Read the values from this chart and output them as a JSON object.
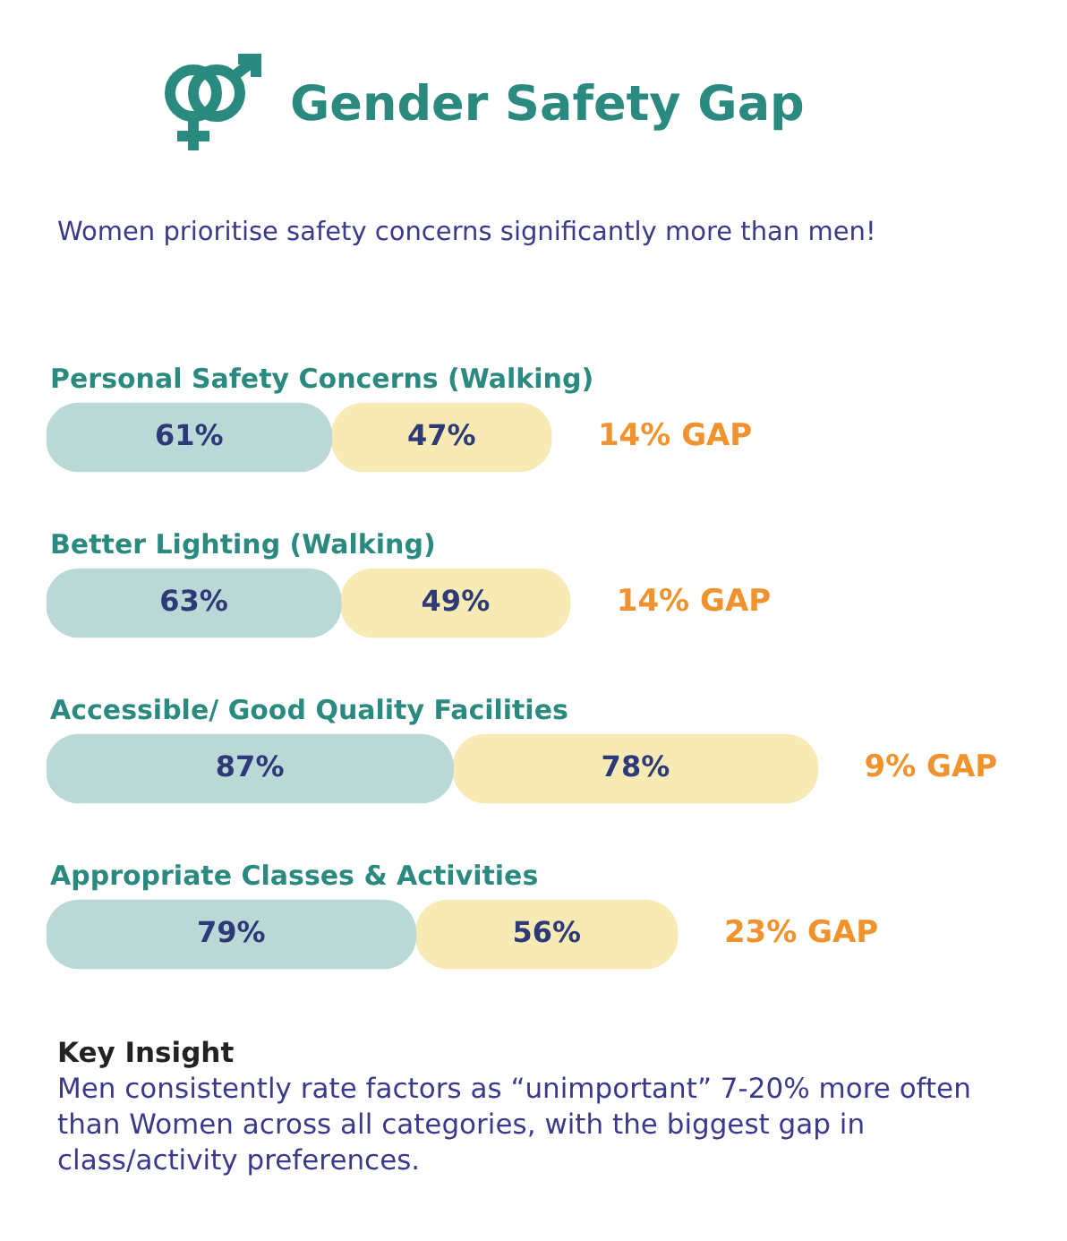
{
  "chart_data": {
    "type": "bar",
    "orientation": "horizontal",
    "stacked": true,
    "title": "Gender Safety Gap",
    "subtitle": "Women prioritise safety concerns significantly more than men!",
    "categories": [
      "Personal Safety Concerns (Walking)",
      "Better Lighting (Walking)",
      "Accessible/ Good Quality Facilities",
      "Appropriate Classes & Activities"
    ],
    "series": [
      {
        "color": "#bad8d5",
        "values": [
          61,
          63,
          87,
          79
        ],
        "value_labels": [
          "61%",
          "63%",
          "87%",
          "79%"
        ]
      },
      {
        "color": "#f7eab5",
        "values": [
          47,
          49,
          78,
          56
        ],
        "value_labels": [
          "47%",
          "49%",
          "78%",
          "56%"
        ]
      }
    ],
    "legend": false,
    "tick_labels": false,
    "annotations": [
      "14% GAP",
      "14% GAP",
      "9% GAP",
      "23% GAP",
      "Key Insight",
      "Men consistently rate factors as “unimportant” 7-20% more often than Women across all categories, with the biggest gap in class/activity preferences."
    ]
  }
}
